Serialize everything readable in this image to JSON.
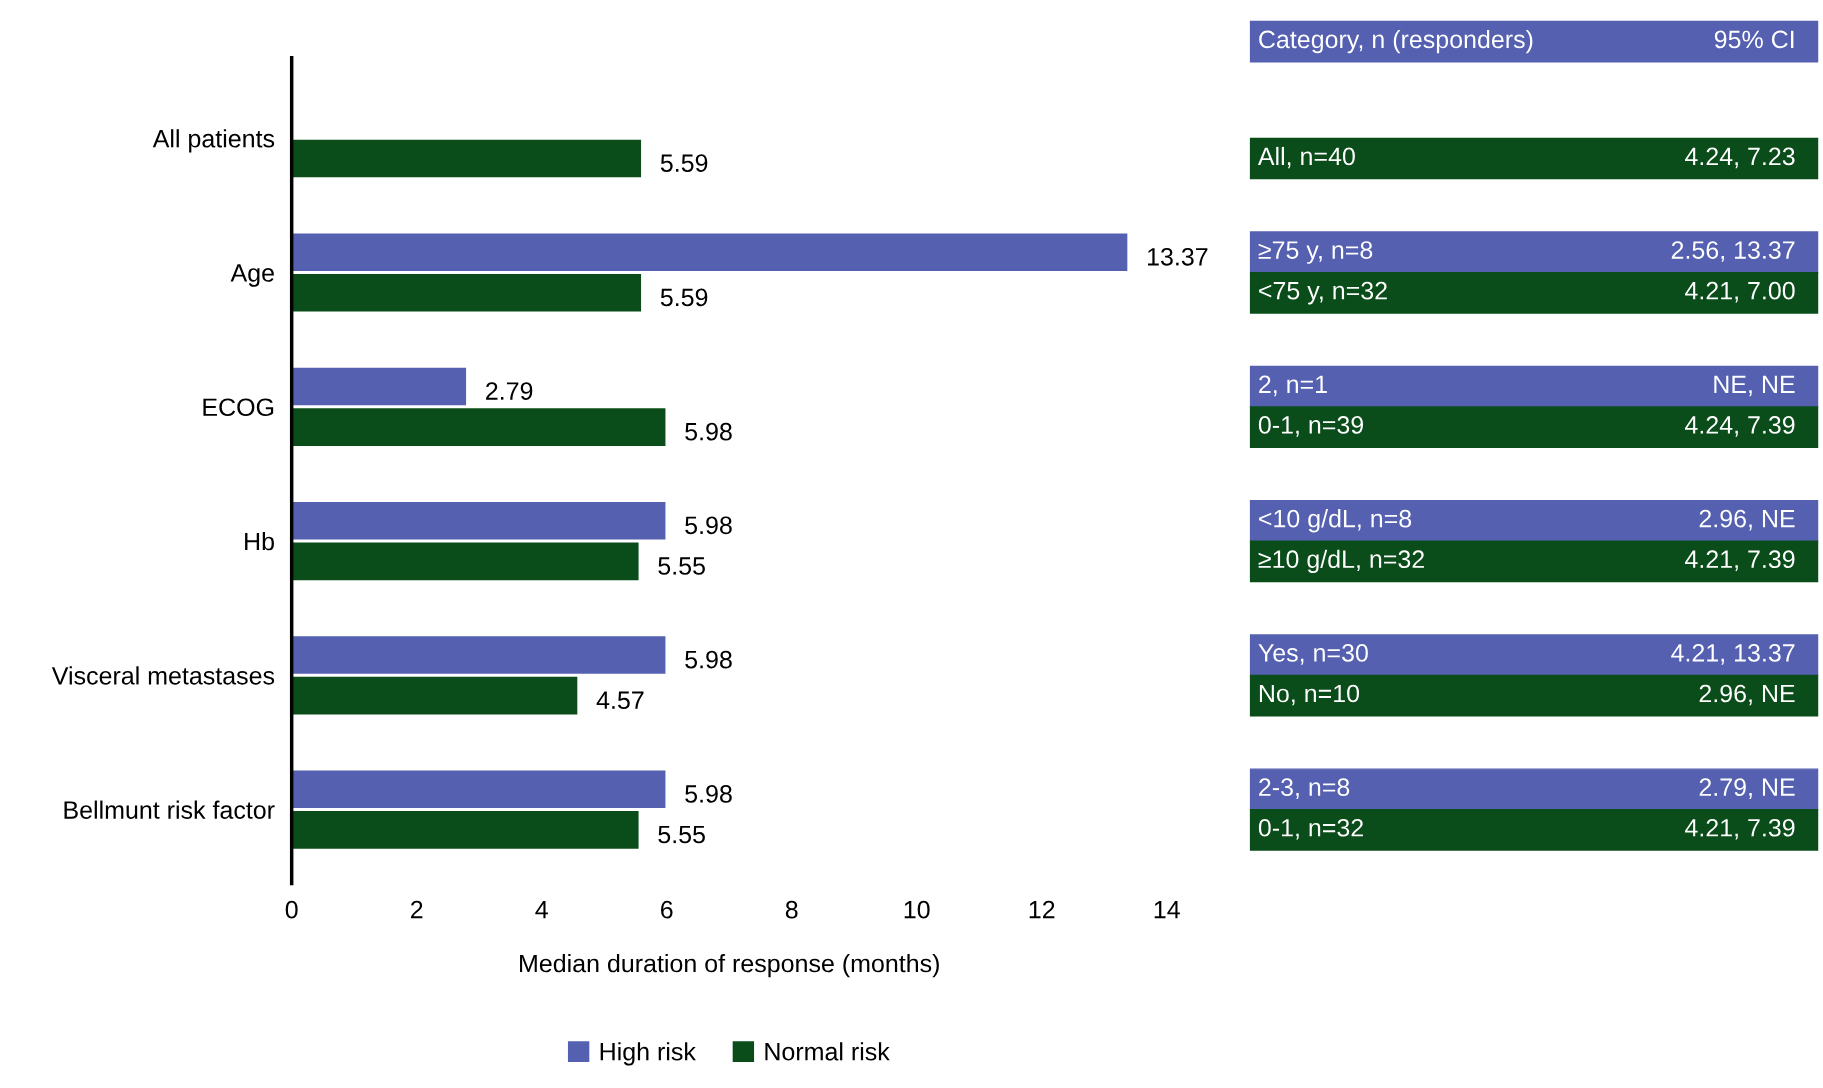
{
  "chart_data": {
    "type": "bar",
    "orientation": "horizontal",
    "categories": [
      "All patients",
      "Age",
      "ECOG",
      "Hb",
      "Visceral metastases",
      "Bellmunt risk factor"
    ],
    "series": [
      {
        "name": "High risk",
        "color": "#5561b0",
        "values": [
          null,
          13.37,
          2.79,
          5.98,
          5.98,
          5.98
        ]
      },
      {
        "name": "Normal risk",
        "color": "#0a4d1a",
        "values": [
          5.59,
          5.59,
          5.98,
          5.55,
          4.57,
          5.55
        ]
      }
    ],
    "xlim": [
      0,
      14
    ],
    "xticks": [
      0,
      2,
      4,
      6,
      8,
      10,
      12,
      14
    ],
    "xlabel": "Median duration of response (months)",
    "data_labels": true,
    "legend": "bottom",
    "grid": false,
    "annotations": [
      "Category, n (responders)",
      "95% CI",
      "All, n=40",
      "4.24, 7.23",
      "≥75 y, n=8",
      "2.56, 13.37",
      "<75 y, n=32",
      "4.21, 7.00",
      "2, n=1",
      "NE, NE",
      "0-1, n=39",
      "4.24, 7.39",
      "<10 g/dL, n=8",
      "2.96, NE",
      "≥10 g/dL, n=32",
      "4.21, 7.39",
      "Yes, n=30",
      "4.21, 13.37",
      "No, n=10",
      "2.96, NE",
      "2-3, n=8",
      "2.79, NE",
      "0-1, n=32",
      "4.21, 7.39"
    ]
  }
}
